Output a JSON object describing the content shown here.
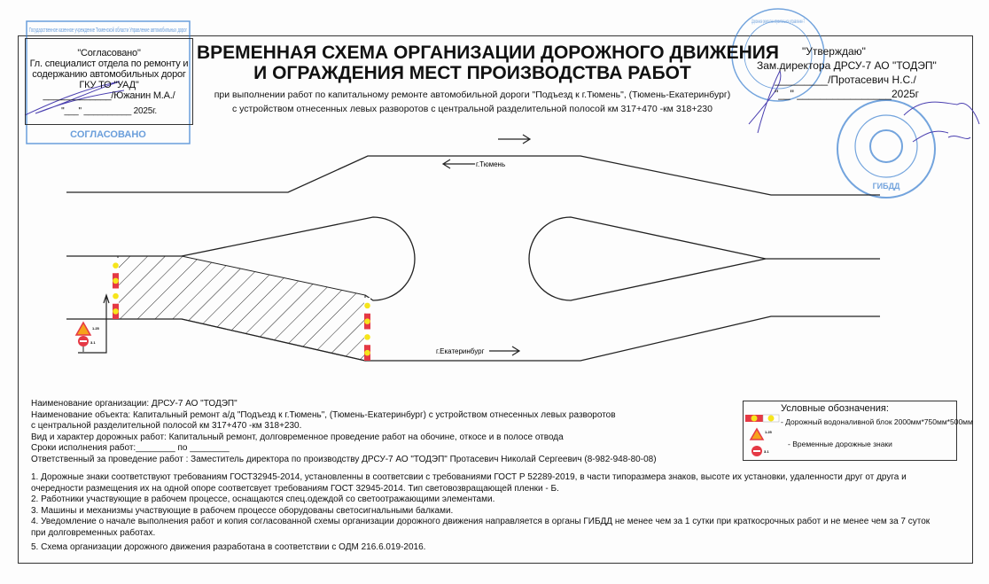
{
  "approval_left": {
    "heading": "\"Согласовано\"",
    "line1": "Гл. специалист отдела по ремонту и",
    "line2": "содержанию автомобильных дорог",
    "line3": "ГКУ ТО \"УАД\"",
    "signatory": "_____________/Южанин М.А./",
    "date": "\"___\" __________ 2025г.",
    "stamp_text": "СОГЛАСОВАНО",
    "stamp_org": "Государственное казенное учреждение Тюменской области Управление автомобильных дорог"
  },
  "approval_right": {
    "heading": "\"Утверждаю\"",
    "position": "Зам.директора ДРСУ-7 АО \"ТОДЭП\"",
    "signatory": "_________/Протасевич Н.С./",
    "date": "\"__\" ________________2025г",
    "stamp_org": "Дорожное ремонтно-строительное управление-7",
    "stamp2_text": "ГИБДД"
  },
  "title": {
    "line1": "ВРЕМЕННАЯ СХЕМА ОРГАНИЗАЦИИ ДОРОЖНОГО ДВИЖЕНИЯ",
    "line2": "И ОГРАЖДЕНИЯ МЕСТ ПРОИЗВОДСТВА РАБОТ",
    "sub1": "при выполнении работ по капитальному ремонте автомобильной дороги \"Подъезд к г.Тюмень\", (Тюмень-Екатеринбург)",
    "sub2": "с устройством отнесенных левых разворотов с центральной разделительной полосой км 317+470 -км 318+230"
  },
  "diagram": {
    "label_tyumen": "г.Тюмень",
    "label_ekb": "г.Екатеринбург",
    "sign1_code": "1.25",
    "sign2_code": "3.1",
    "colors": {
      "barrier_red": "#e53945",
      "barrier_yellow": "#f6e51c",
      "stamp_blue": "#3a7fd0",
      "signature": "#4a3fb0"
    }
  },
  "info": {
    "org": "Наименование организации: ДРСУ-7 АО \"ТОДЭП\"",
    "object1": "Наименование объекта: Капитальный ремонт а/д \"Подъезд к г.Тюмень\", (Тюмень-Екатеринбург) с устройством отнесенных левых разворотов",
    "object2": "с центральной разделительной полосой км 317+470 -км 318+230.",
    "works": "Вид и характер дорожных работ: Капитальный ремонт, долговременное проведение работ на обочине, откосе и в полосе отвода",
    "dates": "Сроки исполнения работ:________ по ________",
    "responsible": "Ответственный за проведение работ : Заместитель директора по производству ДРСУ-7 АО \"ТОДЭП\"  Протасевич Николай Сергеевич (8-982-948-80-08)",
    "notes": [
      "1. Дорожные знаки соответствуют требованиям  ГОСТ32945-2014, установленны в соответсвии с требованиями ГОСТ Р 52289-2019, в части типоразмера знаков, высоте их установки, удаленности друг от друга и",
      "очередности размещения их на одной опоре соответсвует требованиям ГОСТ 32945-2014. Тип световозвращающей пленки - Б.",
      "2. Работники участвующие в рабочем процессе, оснащаются спец.одеждой со светоотражающими элементами.",
      "3. Машины и механизмы участвующие в рабочем процессе оборудованы светосигнальными балками.",
      "4. Уведомление о начале выполнения работ и копия согласованной схемы организации дорожного движения направляется в органы ГИБДД не менее чем за 1 сутки при краткосрочных работ и не менее чем за 7 суток",
      "при долговременных работах.",
      "5.  Схема организации дорожного движения разработана в соответствии с ОДМ 216.6.019-2016."
    ]
  },
  "legend": {
    "title": "Условные обозначения:",
    "barrier": "- Дорожный водоналивной блок 2000мм*750мм*500мм",
    "signs": "- Временные дорожные знаки",
    "sign1_code": "1.25",
    "sign2_code": "3.1"
  }
}
